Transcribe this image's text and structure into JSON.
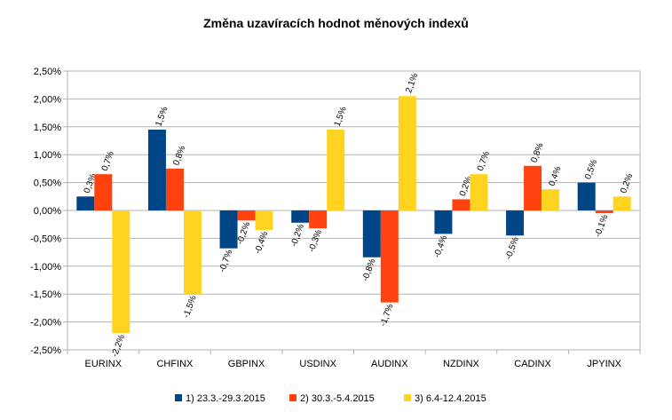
{
  "chart_data": {
    "type": "bar",
    "title": "Změna uzavíracích hodnot měnových indexů",
    "categories": [
      "EURINX",
      "CHFINX",
      "GBPINX",
      "USDINX",
      "AUDINX",
      "NZDINX",
      "CADINX",
      "JPYINX"
    ],
    "series": [
      {
        "name": "1) 23.3.-29.3.2015",
        "color": "#004586",
        "values": [
          0.25,
          1.45,
          -0.68,
          -0.22,
          -0.84,
          -0.42,
          -0.45,
          0.5
        ],
        "labels": [
          "0,3%",
          "1,5%",
          "-0,7%",
          "-0,2%",
          "-0,8%",
          "-0,4%",
          "-0,5%",
          "0,5%"
        ]
      },
      {
        "name": "2) 30.3.-5.4.2015",
        "color": "#ff420e",
        "values": [
          0.65,
          0.75,
          -0.18,
          -0.32,
          -1.65,
          0.2,
          0.8,
          -0.05
        ],
        "labels": [
          "0,7%",
          "0,8%",
          "-0,2%",
          "-0,3%",
          "-1,7%",
          "0,2%",
          "0,8%",
          "-0,1%"
        ]
      },
      {
        "name": "3) 6.4-12.4.2015",
        "color": "#ffd320",
        "values": [
          -2.2,
          -1.5,
          -0.35,
          1.45,
          2.05,
          0.65,
          0.38,
          0.25
        ],
        "labels": [
          "-2,2%",
          "-1,5%",
          "-0,4%",
          "1,5%",
          "2,1%",
          "0,7%",
          "0,4%",
          "0,2%"
        ]
      }
    ],
    "ylim": [
      -2.5,
      2.5
    ],
    "yticks": [
      2.5,
      2.0,
      1.5,
      1.0,
      0.5,
      0.0,
      -0.5,
      -1.0,
      -1.5,
      -2.0,
      -2.5
    ],
    "ytick_labels": [
      "2,50%",
      "2,00%",
      "1,50%",
      "1,00%",
      "0,50%",
      "0,00%",
      "-0,50%",
      "-1,00%",
      "-1,50%",
      "-2,00%",
      "-2,50%"
    ],
    "grid": true,
    "legend": "bottom"
  }
}
